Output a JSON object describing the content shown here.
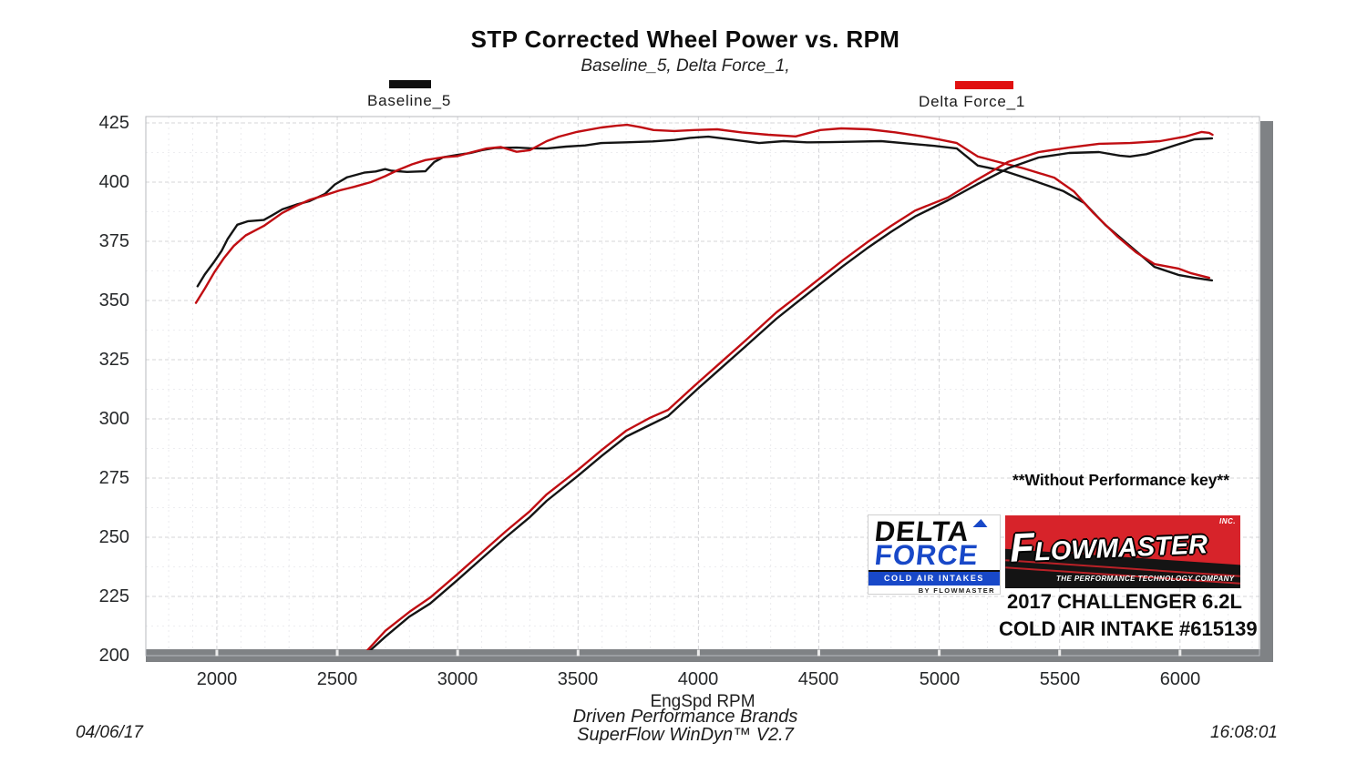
{
  "colors": {
    "baseline_black": "#141414",
    "delta_red": "#c00d12",
    "legend_black_swatch": "#101010",
    "legend_red_swatch": "#e01010",
    "delta_force_blue": "#1848c8",
    "flowmaster_red": "#d7232a",
    "axis_shadow_gray": "#7f8285"
  },
  "annotations": {
    "performance_key_note": "**Without Performance key**",
    "vehicle_line1": "2017 CHALLENGER 6.2L",
    "vehicle_line2": "COLD AIR INTAKE #615139"
  },
  "logos": {
    "delta_force": {
      "word1": "DELTA",
      "word2": "FORCE",
      "bar_text": "COLD AIR INTAKES",
      "byline": "BY FLOWMASTER"
    },
    "flowmaster": {
      "name_first_letter": "F",
      "name_rest": "LOWMASTER",
      "inc": "INC.",
      "tagline": "THE PERFORMANCE TECHNOLOGY COMPANY"
    }
  },
  "footer": {
    "date": "04/06/17",
    "brand_line": "Driven Performance Brands",
    "software_line": "SuperFlow WinDyn™ V2.7",
    "time": "16:08:01"
  },
  "chart_data": {
    "type": "line",
    "title": "STP Corrected Wheel Power vs. RPM",
    "subtitle": "Baseline_5, Delta Force_1,",
    "xlabel": "EngSpd RPM",
    "ylabel": "",
    "grid": true,
    "legend_position": "top",
    "x_axis": {
      "min": 1705,
      "max": 6330,
      "tick_min": 2000,
      "tick_max": 6000,
      "major_step": 500,
      "minor_step": 100
    },
    "y_axis": {
      "min": 200,
      "max": 427.7,
      "tick_min": 200,
      "tick_max": 425,
      "major_step": 25,
      "minor_step": 12.5
    },
    "runs": [
      {
        "name": "Baseline_5",
        "color": "#141414",
        "swatch_color": "#101010",
        "curves": {
          "torque": [
            [
              1920,
              356
            ],
            [
              1950,
              361
            ],
            [
              1990,
              366.5
            ],
            [
              2020,
              371
            ],
            [
              2045,
              376
            ],
            [
              2085,
              382
            ],
            [
              2130,
              383.5
            ],
            [
              2195,
              384
            ],
            [
              2230,
              386
            ],
            [
              2272,
              388.5
            ],
            [
              2330,
              390.5
            ],
            [
              2385,
              392
            ],
            [
              2449,
              395
            ],
            [
              2490,
              399
            ],
            [
              2540,
              402
            ],
            [
              2612,
              404
            ],
            [
              2660,
              404.5
            ],
            [
              2699,
              405.5
            ],
            [
              2725,
              404.8
            ],
            [
              2790,
              404.3
            ],
            [
              2866,
              404.6
            ],
            [
              2903,
              408.5
            ],
            [
              2940,
              410.5
            ],
            [
              3000,
              411.5
            ],
            [
              3054,
              412.3
            ],
            [
              3100,
              413.5
            ],
            [
              3153,
              414.4
            ],
            [
              3245,
              414.6
            ],
            [
              3300,
              414.3
            ],
            [
              3370,
              414.2
            ],
            [
              3450,
              415
            ],
            [
              3530,
              415.5
            ],
            [
              3597,
              416.5
            ],
            [
              3700,
              416.8
            ],
            [
              3810,
              417.2
            ],
            [
              3900,
              417.8
            ],
            [
              3965,
              418.7
            ],
            [
              4041,
              419.2
            ],
            [
              4138,
              418
            ],
            [
              4252,
              416.5
            ],
            [
              4354,
              417.3
            ],
            [
              4450,
              416.8
            ],
            [
              4550,
              416.9
            ],
            [
              4650,
              417.1
            ],
            [
              4759,
              417.3
            ],
            [
              4884,
              416.2
            ],
            [
              4980,
              415.3
            ],
            [
              5073,
              414.2
            ],
            [
              5160,
              407
            ],
            [
              5274,
              404.6
            ],
            [
              5387,
              400.8
            ],
            [
              5516,
              396.2
            ],
            [
              5603,
              391.2
            ],
            [
              5690,
              381.9
            ],
            [
              5792,
              373.1
            ],
            [
              5894,
              364.2
            ],
            [
              5993,
              360.8
            ],
            [
              6060,
              359.6
            ],
            [
              6133,
              358.5
            ]
          ],
          "power": [
            [
              2613,
              200
            ],
            [
              2700,
              208
            ],
            [
              2800,
              216.5
            ],
            [
              2886,
              222
            ],
            [
              3000,
              232
            ],
            [
              3100,
              241
            ],
            [
              3200,
              250
            ],
            [
              3300,
              258.5
            ],
            [
              3370,
              265.4
            ],
            [
              3500,
              276
            ],
            [
              3600,
              284.5
            ],
            [
              3700,
              292.5
            ],
            [
              3800,
              297.5
            ],
            [
              3874,
              301.2
            ],
            [
              4000,
              313
            ],
            [
              4100,
              322
            ],
            [
              4200,
              331
            ],
            [
              4324,
              342.3
            ],
            [
              4400,
              348.5
            ],
            [
              4500,
              356.5
            ],
            [
              4600,
              364.5
            ],
            [
              4700,
              372
            ],
            [
              4800,
              379
            ],
            [
              4900,
              385.5
            ],
            [
              5036,
              392.3
            ],
            [
              5160,
              399.2
            ],
            [
              5285,
              405.8
            ],
            [
              5413,
              410.4
            ],
            [
              5539,
              412.3
            ],
            [
              5664,
              412.7
            ],
            [
              5750,
              411.2
            ],
            [
              5792,
              410.8
            ],
            [
              5860,
              411.8
            ],
            [
              5917,
              413.5
            ],
            [
              6000,
              416.2
            ],
            [
              6060,
              418.1
            ],
            [
              6133,
              418.5
            ]
          ]
        }
      },
      {
        "name": "Delta Force_1",
        "color": "#c00d12",
        "swatch_color": "#e01010",
        "curves": {
          "torque": [
            [
              1913,
              349
            ],
            [
              1950,
              355
            ],
            [
              1990,
              362
            ],
            [
              2030,
              368
            ],
            [
              2070,
              373
            ],
            [
              2120,
              377.5
            ],
            [
              2195,
              381.5
            ],
            [
              2272,
              387
            ],
            [
              2330,
              390
            ],
            [
              2385,
              392.5
            ],
            [
              2449,
              394.5
            ],
            [
              2510,
              396.5
            ],
            [
              2570,
              398
            ],
            [
              2640,
              400
            ],
            [
              2699,
              402.5
            ],
            [
              2750,
              405
            ],
            [
              2810,
              407.5
            ],
            [
              2866,
              409.3
            ],
            [
              2940,
              410.5
            ],
            [
              3000,
              411
            ],
            [
              3054,
              412.5
            ],
            [
              3120,
              414.2
            ],
            [
              3180,
              414.8
            ],
            [
              3245,
              412.8
            ],
            [
              3300,
              413.5
            ],
            [
              3370,
              417.3
            ],
            [
              3420,
              419.2
            ],
            [
              3495,
              421.2
            ],
            [
              3597,
              423.1
            ],
            [
              3660,
              423.8
            ],
            [
              3704,
              424.2
            ],
            [
              3760,
              423.2
            ],
            [
              3814,
              422
            ],
            [
              3900,
              421.6
            ],
            [
              3983,
              422
            ],
            [
              4078,
              422.3
            ],
            [
              4180,
              421
            ],
            [
              4290,
              420
            ],
            [
              4404,
              419.3
            ],
            [
              4506,
              422
            ],
            [
              4593,
              422.7
            ],
            [
              4707,
              422.3
            ],
            [
              4820,
              421
            ],
            [
              4930,
              419.3
            ],
            [
              5000,
              418
            ],
            [
              5073,
              416.5
            ],
            [
              5160,
              410.8
            ],
            [
              5235,
              408.8
            ],
            [
              5350,
              405.8
            ],
            [
              5478,
              401.9
            ],
            [
              5560,
              396
            ],
            [
              5640,
              387
            ],
            [
              5742,
              376.9
            ],
            [
              5817,
              370.4
            ],
            [
              5894,
              365.4
            ],
            [
              5993,
              363.5
            ],
            [
              6046,
              361.5
            ],
            [
              6121,
              359.6
            ]
          ],
          "power": [
            [
              2605,
              200
            ],
            [
              2700,
              210.5
            ],
            [
              2800,
              218.5
            ],
            [
              2886,
              224.5
            ],
            [
              3000,
              234.5
            ],
            [
              3100,
              243.5
            ],
            [
              3200,
              252.5
            ],
            [
              3300,
              261
            ],
            [
              3370,
              268.1
            ],
            [
              3500,
              278.5
            ],
            [
              3600,
              287
            ],
            [
              3700,
              295
            ],
            [
              3800,
              300.5
            ],
            [
              3874,
              303.8
            ],
            [
              4000,
              315.5
            ],
            [
              4100,
              324.5
            ],
            [
              4200,
              333.5
            ],
            [
              4324,
              345
            ],
            [
              4400,
              351
            ],
            [
              4500,
              359
            ],
            [
              4600,
              367
            ],
            [
              4700,
              374.5
            ],
            [
              4800,
              381.5
            ],
            [
              4900,
              388
            ],
            [
              5036,
              393.5
            ],
            [
              5160,
              401.2
            ],
            [
              5285,
              408.5
            ],
            [
              5413,
              412.7
            ],
            [
              5539,
              414.6
            ],
            [
              5664,
              416.2
            ],
            [
              5792,
              416.5
            ],
            [
              5917,
              417.3
            ],
            [
              6020,
              419.2
            ],
            [
              6090,
              421.2
            ],
            [
              6121,
              420.8
            ],
            [
              6135,
              420
            ]
          ]
        }
      }
    ]
  }
}
